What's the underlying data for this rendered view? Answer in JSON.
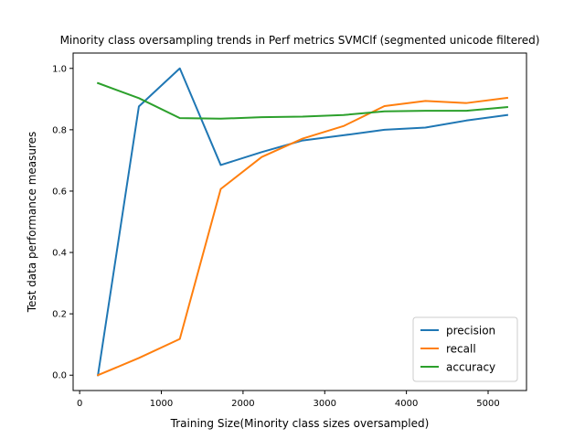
{
  "chart_data": {
    "type": "line",
    "title": "Minority class oversampling trends in Perf metrics SVMClf (segmented unicode filtered)",
    "xlabel": "Training Size(Minority class sizes oversampled)",
    "ylabel": "Test data performance measures",
    "xlim": [
      -80,
      5470
    ],
    "ylim": [
      -0.05,
      1.05
    ],
    "xticks": [
      0,
      1000,
      2000,
      3000,
      4000,
      5000
    ],
    "yticks": [
      0.0,
      0.2,
      0.4,
      0.6,
      0.8,
      1.0
    ],
    "xtick_labels": [
      "0",
      "1000",
      "2000",
      "3000",
      "4000",
      "5000"
    ],
    "ytick_labels": [
      "0.0",
      "0.2",
      "0.4",
      "0.6",
      "0.8",
      "1.0"
    ],
    "grid": false,
    "legend_position": "lower-right",
    "x": [
      224,
      725,
      1226,
      1727,
      2228,
      2729,
      3230,
      3731,
      4232,
      4733,
      5234
    ],
    "series": [
      {
        "name": "precision",
        "color": "#1f77b4",
        "values": [
          0.0,
          0.876,
          1.0,
          0.685,
          0.727,
          0.765,
          0.782,
          0.8,
          0.807,
          0.83,
          0.848
        ]
      },
      {
        "name": "recall",
        "color": "#ff7f0e",
        "values": [
          0.0,
          0.056,
          0.118,
          0.607,
          0.711,
          0.771,
          0.812,
          0.877,
          0.894,
          0.887,
          0.904
        ]
      },
      {
        "name": "accuracy",
        "color": "#2ca02c",
        "values": [
          0.952,
          0.903,
          0.838,
          0.836,
          0.841,
          0.843,
          0.848,
          0.86,
          0.862,
          0.862,
          0.874
        ]
      }
    ]
  }
}
